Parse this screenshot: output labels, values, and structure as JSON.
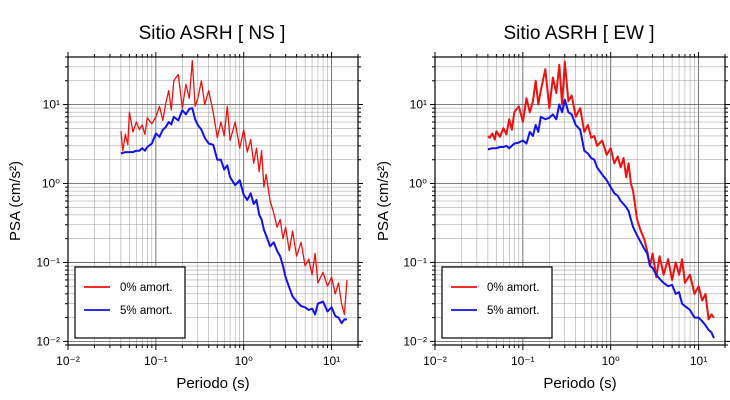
{
  "chart_data": [
    {
      "type": "line",
      "title": "Sitio ASRH [ NS ]",
      "xlabel": "Periodo (s)",
      "ylabel": "PSA (cm/s²)",
      "x_scale": "log",
      "y_scale": "log",
      "xlim": [
        0.01,
        20
      ],
      "ylim": [
        0.009,
        40
      ],
      "grid": true,
      "legend_position": "bottom-left",
      "x_tick_labels": [
        "10⁻²",
        "10⁻¹",
        "10⁰",
        "10¹"
      ],
      "y_tick_labels": [
        "10⁻²",
        "10⁻¹",
        "10⁰",
        "10¹"
      ],
      "series": [
        {
          "name": "0% amort.",
          "color": "#ee1111",
          "x": [
            0.04,
            0.042,
            0.045,
            0.048,
            0.05,
            0.055,
            0.06,
            0.065,
            0.07,
            0.075,
            0.08,
            0.09,
            0.1,
            0.11,
            0.12,
            0.13,
            0.14,
            0.15,
            0.16,
            0.18,
            0.2,
            0.22,
            0.24,
            0.26,
            0.28,
            0.3,
            0.33,
            0.36,
            0.4,
            0.45,
            0.5,
            0.55,
            0.6,
            0.65,
            0.7,
            0.8,
            0.9,
            1.0,
            1.1,
            1.2,
            1.3,
            1.4,
            1.5,
            1.6,
            1.7,
            1.8,
            2.0,
            2.2,
            2.4,
            2.6,
            2.8,
            3.0,
            3.3,
            3.6,
            4.0,
            4.5,
            5.0,
            5.5,
            6.0,
            6.5,
            7.0,
            8.0,
            9.0,
            10.0,
            11.0,
            12.0,
            13.0,
            14.0,
            15.0
          ],
          "values": [
            4.6,
            2.6,
            4.2,
            3.1,
            8.0,
            4.5,
            6.0,
            4.8,
            5.5,
            4.2,
            6.8,
            5.7,
            7.0,
            9.5,
            6.3,
            10.5,
            15.0,
            8.5,
            20.0,
            24.0,
            9.0,
            18.0,
            12.0,
            36.0,
            9.5,
            12.0,
            20.0,
            10.0,
            15.0,
            8.0,
            3.8,
            6.0,
            4.0,
            9.5,
            3.5,
            6.0,
            2.8,
            4.8,
            2.5,
            3.6,
            1.8,
            2.8,
            1.4,
            2.6,
            0.9,
            1.3,
            0.6,
            0.42,
            0.28,
            0.35,
            0.2,
            0.28,
            0.14,
            0.25,
            0.12,
            0.18,
            0.09,
            0.11,
            0.07,
            0.13,
            0.055,
            0.075,
            0.05,
            0.065,
            0.04,
            0.055,
            0.03,
            0.022,
            0.06
          ]
        },
        {
          "name": "5% amort.",
          "color": "#1111ee",
          "x": [
            0.04,
            0.045,
            0.05,
            0.055,
            0.06,
            0.065,
            0.07,
            0.075,
            0.08,
            0.09,
            0.1,
            0.11,
            0.12,
            0.13,
            0.14,
            0.15,
            0.16,
            0.18,
            0.2,
            0.22,
            0.24,
            0.26,
            0.28,
            0.3,
            0.33,
            0.36,
            0.4,
            0.45,
            0.5,
            0.55,
            0.6,
            0.65,
            0.7,
            0.8,
            0.9,
            1.0,
            1.1,
            1.2,
            1.3,
            1.4,
            1.5,
            1.6,
            1.7,
            1.8,
            2.0,
            2.2,
            2.4,
            2.6,
            2.8,
            3.0,
            3.3,
            3.6,
            4.0,
            4.5,
            5.0,
            5.5,
            6.0,
            6.5,
            7.0,
            8.0,
            9.0,
            10.0,
            11.0,
            12.0,
            13.0,
            14.0,
            15.0
          ],
          "values": [
            2.4,
            2.5,
            2.5,
            2.5,
            2.6,
            2.6,
            2.8,
            2.6,
            2.9,
            3.2,
            4.3,
            3.9,
            4.8,
            5.2,
            6.0,
            5.6,
            7.0,
            6.3,
            8.5,
            7.5,
            8.8,
            9.0,
            6.5,
            5.5,
            4.8,
            3.8,
            3.2,
            3.1,
            2.0,
            2.0,
            1.5,
            1.7,
            1.2,
            0.95,
            1.1,
            0.72,
            0.62,
            0.75,
            0.55,
            0.62,
            0.4,
            0.35,
            0.26,
            0.22,
            0.16,
            0.18,
            0.14,
            0.12,
            0.09,
            0.065,
            0.048,
            0.037,
            0.032,
            0.028,
            0.027,
            0.025,
            0.026,
            0.022,
            0.03,
            0.032,
            0.024,
            0.027,
            0.021,
            0.02,
            0.017,
            0.019,
            0.019
          ]
        }
      ]
    },
    {
      "type": "line",
      "title": "Sitio ASRH [ EW ]",
      "xlabel": "Periodo (s)",
      "ylabel": "PSA (cm/s²)",
      "x_scale": "log",
      "y_scale": "log",
      "xlim": [
        0.01,
        20
      ],
      "ylim": [
        0.009,
        40
      ],
      "grid": true,
      "legend_position": "bottom-left",
      "x_tick_labels": [
        "10⁻²",
        "10⁻¹",
        "10⁰",
        "10¹"
      ],
      "y_tick_labels": [
        "10⁻²",
        "10⁻¹",
        "10⁰",
        "10¹"
      ],
      "series": [
        {
          "name": "0% amort.",
          "color": "#ee1111",
          "x": [
            0.04,
            0.042,
            0.045,
            0.048,
            0.05,
            0.055,
            0.06,
            0.065,
            0.07,
            0.075,
            0.08,
            0.09,
            0.1,
            0.11,
            0.12,
            0.13,
            0.14,
            0.15,
            0.16,
            0.18,
            0.2,
            0.22,
            0.24,
            0.26,
            0.28,
            0.3,
            0.33,
            0.36,
            0.4,
            0.45,
            0.5,
            0.55,
            0.6,
            0.65,
            0.7,
            0.8,
            0.9,
            1.0,
            1.1,
            1.2,
            1.3,
            1.4,
            1.5,
            1.6,
            1.7,
            1.8,
            2.0,
            2.2,
            2.4,
            2.6,
            2.8,
            3.0,
            3.3,
            3.6,
            4.0,
            4.5,
            5.0,
            5.5,
            6.0,
            6.5,
            7.0,
            8.0,
            9.0,
            10.0,
            11.0,
            12.0,
            13.0,
            14.0,
            15.0
          ],
          "values": [
            4.0,
            3.8,
            4.3,
            3.6,
            4.6,
            3.9,
            5.0,
            4.2,
            6.5,
            4.8,
            8.0,
            9.5,
            6.0,
            12.0,
            8.0,
            11.0,
            20.0,
            10.0,
            15.0,
            28.0,
            9.0,
            22.0,
            14.0,
            32.0,
            10.0,
            35.0,
            11.0,
            13.0,
            7.0,
            9.0,
            4.5,
            5.5,
            3.8,
            4.0,
            3.0,
            3.5,
            2.3,
            2.8,
            1.8,
            2.2,
            1.6,
            2.1,
            1.2,
            1.8,
            1.0,
            0.8,
            0.35,
            0.25,
            0.2,
            0.14,
            0.09,
            0.13,
            0.065,
            0.12,
            0.07,
            0.11,
            0.06,
            0.1,
            0.07,
            0.11,
            0.055,
            0.07,
            0.04,
            0.05,
            0.033,
            0.04,
            0.019,
            0.022,
            0.02
          ]
        },
        {
          "name": "5% amort.",
          "color": "#1111ee",
          "x": [
            0.04,
            0.045,
            0.05,
            0.055,
            0.06,
            0.065,
            0.07,
            0.075,
            0.08,
            0.09,
            0.1,
            0.11,
            0.12,
            0.13,
            0.14,
            0.15,
            0.16,
            0.18,
            0.2,
            0.22,
            0.24,
            0.26,
            0.28,
            0.3,
            0.33,
            0.36,
            0.4,
            0.45,
            0.5,
            0.55,
            0.6,
            0.65,
            0.7,
            0.8,
            0.9,
            1.0,
            1.1,
            1.2,
            1.3,
            1.4,
            1.5,
            1.6,
            1.7,
            1.8,
            2.0,
            2.2,
            2.4,
            2.6,
            2.8,
            3.0,
            3.3,
            3.6,
            4.0,
            4.5,
            5.0,
            5.5,
            6.0,
            6.5,
            7.0,
            8.0,
            9.0,
            10.0,
            11.0,
            12.0,
            13.0,
            14.0,
            15.0
          ],
          "values": [
            2.7,
            2.8,
            2.8,
            2.9,
            2.9,
            3.0,
            2.8,
            3.0,
            3.2,
            3.3,
            3.5,
            3.2,
            4.5,
            4.0,
            5.5,
            4.5,
            7.0,
            6.5,
            6.8,
            7.5,
            6.5,
            10.0,
            8.0,
            11.5,
            8.0,
            7.5,
            5.5,
            4.8,
            2.6,
            2.4,
            2.1,
            2.0,
            1.6,
            1.3,
            1.1,
            0.9,
            0.75,
            0.7,
            0.6,
            0.55,
            0.5,
            0.45,
            0.35,
            0.28,
            0.22,
            0.18,
            0.15,
            0.13,
            0.09,
            0.085,
            0.07,
            0.062,
            0.055,
            0.05,
            0.052,
            0.04,
            0.042,
            0.03,
            0.028,
            0.025,
            0.02,
            0.02,
            0.018,
            0.016,
            0.014,
            0.013,
            0.011
          ]
        }
      ]
    }
  ]
}
